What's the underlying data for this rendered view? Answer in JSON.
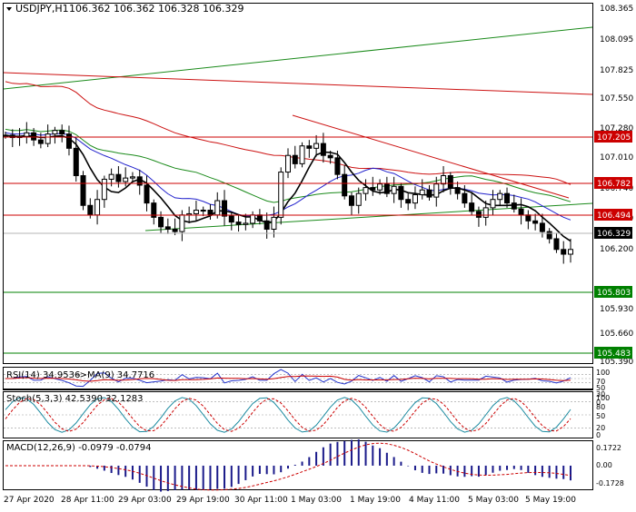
{
  "main": {
    "symbol_label": "USDJPY,H1",
    "ohlc": "106.362 106.362 106.328 106.329",
    "price_ticks": [
      "108.365",
      "108.095",
      "107.825",
      "107.550",
      "107.280",
      "107.010",
      "106.740",
      "106.470",
      "106.200",
      "105.930",
      "105.660",
      "105.390"
    ],
    "levels": [
      {
        "label": "107.205",
        "kind": "resistance"
      },
      {
        "label": "106.782",
        "kind": "resistance"
      },
      {
        "label": "106.494",
        "kind": "resistance"
      },
      {
        "label": "106.329",
        "kind": "current"
      },
      {
        "label": "105.803",
        "kind": "support"
      },
      {
        "label": "105.483",
        "kind": "support"
      }
    ]
  },
  "rsi": {
    "label": "RSI(14) 34.9536",
    "ma_label": "->MA(9) 34.7716",
    "ticks": [
      "100",
      "70",
      "50",
      "30",
      "0"
    ]
  },
  "stoch": {
    "label": "Stoch(5,3,3) 42.5390 32.1283",
    "ticks": [
      "100",
      "80",
      "50",
      "20",
      "0"
    ]
  },
  "macd": {
    "label": "MACD(12,26,9) -0.0979 -0.0794",
    "ticks": [
      "0.1722",
      "0.00",
      "-0.1728"
    ]
  },
  "x_axis": [
    "27 Apr 2020",
    "28 Apr 11:00",
    "29 Apr 03:00",
    "29 Apr 19:00",
    "30 Apr 11:00",
    "1 May 03:00",
    "1 May 19:00",
    "4 May 11:00",
    "5 May 03:00",
    "5 May 19:00"
  ],
  "colors": {
    "resistance": "#cc0000",
    "support": "#008000",
    "current": "#000000",
    "candle": "#000000",
    "ma_black": "#000000",
    "ma_blue": "#2222cc",
    "ma_green": "#1a8a1a",
    "ma_red": "#cc1111",
    "rsi": "#2233cc",
    "signal": "#cc0000"
  },
  "chart_data": [
    {
      "type": "candlestick",
      "title": "USDJPY,H1",
      "ylim": [
        105.39,
        108.365
      ],
      "close_approx": [
        107.29,
        107.27,
        107.28,
        107.31,
        107.25,
        107.22,
        107.3,
        107.33,
        107.3,
        107.18,
        106.95,
        106.7,
        106.62,
        106.75,
        106.92,
        106.96,
        106.9,
        106.93,
        106.94,
        106.87,
        106.72,
        106.6,
        106.52,
        106.5,
        106.48,
        106.62,
        106.63,
        106.66,
        106.66,
        106.62,
        106.74,
        106.61,
        106.56,
        106.54,
        106.55,
        106.62,
        106.57,
        106.5,
        106.6,
        106.98,
        107.12,
        107.05,
        107.2,
        107.18,
        107.22,
        107.12,
        107.1,
        106.96,
        106.78,
        106.7,
        106.8,
        106.85,
        106.83,
        106.88,
        106.8,
        106.86,
        106.75,
        106.72,
        106.79,
        106.83,
        106.77,
        106.88,
        106.95,
        106.85,
        106.8,
        106.72,
        106.65,
        106.6,
        106.68,
        106.75,
        106.8,
        106.72,
        106.67,
        106.62,
        106.57,
        106.55,
        106.48,
        106.42,
        106.33,
        106.29,
        106.33
      ],
      "overlays": [
        "MA black",
        "MA blue",
        "MA green",
        "MA red",
        "trend lines"
      ]
    },
    {
      "type": "line",
      "title": "RSI(14) 34.9536",
      "ylim": [
        0,
        100
      ],
      "series": [
        {
          "name": "RSI(14)"
        },
        {
          "name": "MA(9)"
        }
      ]
    },
    {
      "type": "line",
      "title": "Stoch(5,3,3) 42.5390 32.1283",
      "ylim": [
        0,
        100
      ]
    },
    {
      "type": "bar",
      "title": "MACD(12,26,9) -0.0979 -0.0794",
      "ylim": [
        -0.1728,
        0.1722
      ]
    }
  ]
}
